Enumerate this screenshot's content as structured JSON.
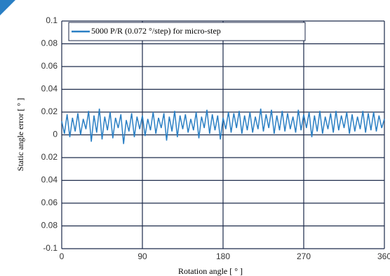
{
  "chart_data": {
    "type": "line",
    "ylabel": "Static angle error [ ° ]",
    "xlabel": "Rotation angle [ ° ]",
    "xlim": [
      0,
      360
    ],
    "xticks": [
      0,
      90,
      180,
      270,
      360
    ],
    "ylim": [
      -0.1,
      0.1
    ],
    "yticks": [
      0.1,
      0.08,
      0.06,
      0.04,
      0.02,
      0,
      {
        "value": -0.02,
        "label": "0.02"
      },
      {
        "value": -0.04,
        "label": "0.04"
      },
      {
        "value": -0.06,
        "label": "0.06"
      },
      {
        "value": -0.08,
        "label": "0.08"
      },
      -0.1
    ],
    "grid": true,
    "legend": "top-left",
    "x": [
      0,
      3,
      6,
      9,
      12,
      15,
      18,
      21,
      24,
      27,
      30,
      33,
      36,
      39,
      42,
      45,
      48,
      51,
      54,
      57,
      60,
      63,
      66,
      69,
      72,
      75,
      78,
      81,
      84,
      87,
      90,
      93,
      96,
      99,
      102,
      105,
      108,
      111,
      114,
      117,
      120,
      123,
      126,
      129,
      132,
      135,
      138,
      141,
      144,
      147,
      150,
      153,
      156,
      159,
      162,
      165,
      168,
      171,
      174,
      177,
      180,
      183,
      186,
      189,
      192,
      195,
      198,
      201,
      204,
      207,
      210,
      213,
      216,
      219,
      222,
      225,
      228,
      231,
      234,
      237,
      240,
      243,
      246,
      249,
      252,
      255,
      258,
      261,
      264,
      267,
      270,
      273,
      276,
      279,
      282,
      285,
      288,
      291,
      294,
      297,
      300,
      303,
      306,
      309,
      312,
      315,
      318,
      321,
      324,
      327,
      330,
      333,
      336,
      339,
      342,
      345,
      348,
      351,
      354,
      357,
      360
    ],
    "series": [
      {
        "name": "5000 P/R (0.072 °/step) for micro-step",
        "color": "#2a7fc4",
        "values": [
          0.012,
          0.001,
          0.018,
          -0.002,
          0.015,
          0.003,
          0.019,
          0,
          0.014,
          0.005,
          0.021,
          -0.006,
          0.017,
          0.002,
          0.023,
          -0.004,
          0.016,
          0.004,
          0.02,
          -0.003,
          0.015,
          0.006,
          0.018,
          -0.008,
          0.013,
          0.003,
          0.019,
          -0.002,
          0.016,
          0.005,
          0.017,
          -0.001,
          0.014,
          0.004,
          0.02,
          0.001,
          0.015,
          0.006,
          0.019,
          -0.005,
          0.016,
          0.003,
          0.021,
          -0.002,
          0.017,
          0.005,
          0.018,
          0.002,
          0.014,
          0.004,
          0.02,
          -0.003,
          0.016,
          0.006,
          0.022,
          0.001,
          0.018,
          0.004,
          0.017,
          -0.004,
          0.015,
          0.005,
          0.02,
          0.002,
          0.019,
          0.006,
          0.021,
          0.001,
          0.017,
          0.004,
          0.02,
          0.002,
          0.016,
          0.005,
          0.023,
          0.003,
          0.018,
          0.006,
          0.022,
          0.001,
          0.017,
          0.004,
          0.021,
          0.003,
          0.019,
          0.005,
          0.016,
          0.002,
          0.022,
          0.004,
          0.018,
          0.006,
          0.02,
          -0.002,
          0.017,
          0.003,
          0.021,
          0.001,
          0.016,
          0.005,
          0.019,
          0.002,
          0.021,
          0.004,
          0.017,
          0.006,
          0.02,
          0.001,
          0.018,
          0.003,
          0.016,
          0.005,
          0.021,
          0.002,
          0.019,
          0.004,
          0.02,
          0.003,
          0.017,
          0.006,
          0.014
        ]
      }
    ]
  }
}
